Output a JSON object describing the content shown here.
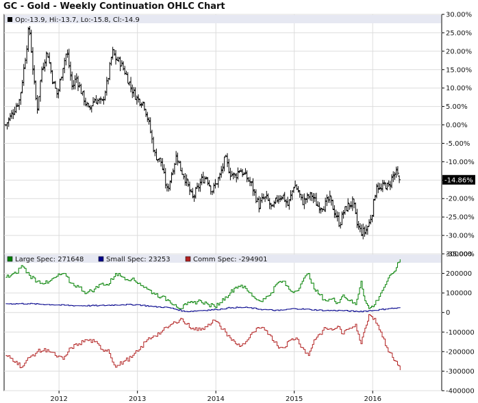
{
  "title": "GC - Gold - Weekly Continuation OHLC Chart",
  "colors": {
    "price": "#000000",
    "large_spec": "#008000",
    "small_spec": "#00008b",
    "comm_spec": "#b22222",
    "legend_band": "#e6e8f2",
    "grid": "#dcdcdc",
    "last_value_box": "#000000"
  },
  "price_legend": {
    "text": "Op:-13.9, Hi:-13.7, Lo:-15.8, Cl:-14.9"
  },
  "last_value_label": "-14.86%",
  "cot_legend": [
    {
      "text": "Large Spec: 271648",
      "color": "#008000"
    },
    {
      "text": "Small Spec: 23253",
      "color": "#00008b"
    },
    {
      "text": "Comm Spec: -294901",
      "color": "#b22222"
    }
  ],
  "chart_data": [
    {
      "type": "ohlc",
      "x_range": [
        2011.3,
        2016.88
      ],
      "ylim": [
        -35,
        30
      ],
      "y_ticks": [
        "30.00%",
        "25.00%",
        "20.00%",
        "15.00%",
        "10.00%",
        "5.00%",
        "0.00%",
        "-5.00%",
        "-10.00%",
        "-15.00%",
        "-20.00%",
        "-25.00%",
        "-30.00%",
        "-35.00%"
      ],
      "y_tick_values": [
        30,
        25,
        20,
        15,
        10,
        5,
        0,
        -5,
        -10,
        -15,
        -20,
        -25,
        -30,
        -35
      ],
      "grid": true,
      "close_path_x": [
        2011.32,
        2011.4,
        2011.5,
        2011.58,
        2011.62,
        2011.68,
        2011.72,
        2011.78,
        2011.85,
        2011.92,
        2011.98,
        2012.05,
        2012.1,
        2012.17,
        2012.22,
        2012.3,
        2012.38,
        2012.45,
        2012.55,
        2012.62,
        2012.68,
        2012.72,
        2012.78,
        2012.85,
        2012.92,
        2013.0,
        2013.08,
        2013.15,
        2013.22,
        2013.3,
        2013.38,
        2013.45,
        2013.5,
        2013.55,
        2013.6,
        2013.65,
        2013.7,
        2013.75,
        2013.82,
        2013.88,
        2013.95,
        2014.0,
        2014.05,
        2014.12,
        2014.18,
        2014.25,
        2014.3,
        2014.38,
        2014.45,
        2014.5,
        2014.55,
        2014.6,
        2014.65,
        2014.72,
        2014.78,
        2014.85,
        2014.92,
        2015.0,
        2015.05,
        2015.1,
        2015.15,
        2015.22,
        2015.3,
        2015.38,
        2015.45,
        2015.52,
        2015.58,
        2015.62,
        2015.68,
        2015.75,
        2015.8,
        2015.85,
        2015.9,
        2015.95,
        2016.0,
        2016.05,
        2016.1,
        2016.15,
        2016.2,
        2016.25,
        2016.3,
        2016.35
      ],
      "close_path_y": [
        0,
        3,
        7,
        20,
        27,
        12,
        4,
        15,
        20,
        12,
        8,
        16,
        20,
        10,
        13,
        8,
        4,
        7,
        6,
        12,
        20,
        18,
        17,
        14,
        10,
        7,
        6,
        0,
        -8,
        -10,
        -18,
        -12,
        -8,
        -12,
        -14,
        -17,
        -20,
        -18,
        -15,
        -14,
        -18,
        -16,
        -14,
        -9,
        -13,
        -14,
        -12,
        -14,
        -16,
        -19,
        -22,
        -20,
        -20,
        -23,
        -20,
        -19,
        -22,
        -16,
        -18,
        -21,
        -20,
        -19,
        -22,
        -22,
        -20,
        -24,
        -27,
        -24,
        -22,
        -21,
        -27,
        -29,
        -29,
        -27,
        -23,
        -16,
        -18,
        -16,
        -17,
        -14,
        -13,
        -14.9
      ],
      "last_bar": {
        "open": -13.9,
        "high": -13.7,
        "low": -15.8,
        "close": -14.9
      }
    },
    {
      "type": "line",
      "x_range": [
        2011.3,
        2016.88
      ],
      "ylim": [
        -400000,
        300000
      ],
      "y_ticks": [
        "300000",
        "200000",
        "100000",
        "0",
        "-100000",
        "-200000",
        "-300000",
        "-400000"
      ],
      "y_tick_values": [
        300000,
        200000,
        100000,
        0,
        -100000,
        -200000,
        -300000,
        -400000
      ],
      "x_ticks": [
        "2012",
        "2013",
        "2014",
        "2015",
        "2016"
      ],
      "x_tick_values": [
        2012,
        2013,
        2014,
        2015,
        2016
      ],
      "grid": true,
      "series": [
        {
          "name": "Large Spec",
          "color": "#008000",
          "x": [
            2011.32,
            2011.45,
            2011.52,
            2011.62,
            2011.72,
            2011.85,
            2011.95,
            2012.05,
            2012.15,
            2012.25,
            2012.35,
            2012.45,
            2012.55,
            2012.62,
            2012.72,
            2012.82,
            2012.92,
            2013.02,
            2013.12,
            2013.2,
            2013.3,
            2013.4,
            2013.48,
            2013.55,
            2013.62,
            2013.7,
            2013.8,
            2013.9,
            2013.98,
            2014.05,
            2014.12,
            2014.18,
            2014.25,
            2014.32,
            2014.4,
            2014.48,
            2014.55,
            2014.62,
            2014.7,
            2014.78,
            2014.85,
            2014.95,
            2015.02,
            2015.1,
            2015.18,
            2015.25,
            2015.32,
            2015.4,
            2015.48,
            2015.55,
            2015.62,
            2015.7,
            2015.78,
            2015.85,
            2015.9,
            2015.95,
            2016.02,
            2016.1,
            2016.18,
            2016.25,
            2016.3,
            2016.35
          ],
          "y": [
            180000,
            200000,
            240000,
            190000,
            160000,
            150000,
            180000,
            200000,
            150000,
            130000,
            100000,
            120000,
            150000,
            140000,
            200000,
            180000,
            170000,
            150000,
            120000,
            100000,
            80000,
            60000,
            40000,
            20000,
            40000,
            50000,
            60000,
            40000,
            30000,
            50000,
            80000,
            100000,
            130000,
            140000,
            110000,
            80000,
            60000,
            70000,
            100000,
            150000,
            160000,
            110000,
            110000,
            160000,
            200000,
            120000,
            90000,
            60000,
            70000,
            50000,
            90000,
            60000,
            40000,
            160000,
            60000,
            20000,
            40000,
            100000,
            160000,
            200000,
            230000,
            272000
          ]
        },
        {
          "name": "Small Spec",
          "color": "#00008b",
          "x": [
            2011.32,
            2011.6,
            2011.9,
            2012.2,
            2012.5,
            2012.8,
            2013.0,
            2013.2,
            2013.4,
            2013.6,
            2013.8,
            2014.0,
            2014.2,
            2014.4,
            2014.6,
            2014.8,
            2015.0,
            2015.2,
            2015.4,
            2015.6,
            2015.8,
            2016.0,
            2016.2,
            2016.35
          ],
          "y": [
            45000,
            45000,
            40000,
            35000,
            35000,
            40000,
            40000,
            30000,
            25000,
            5000,
            10000,
            15000,
            25000,
            25000,
            15000,
            10000,
            20000,
            15000,
            10000,
            10000,
            5000,
            10000,
            20000,
            23000
          ]
        },
        {
          "name": "Comm Spec",
          "color": "#b22222",
          "x": [
            2011.32,
            2011.45,
            2011.52,
            2011.62,
            2011.72,
            2011.85,
            2011.95,
            2012.05,
            2012.15,
            2012.25,
            2012.35,
            2012.45,
            2012.55,
            2012.62,
            2012.72,
            2012.82,
            2012.92,
            2013.02,
            2013.12,
            2013.2,
            2013.3,
            2013.4,
            2013.48,
            2013.55,
            2013.62,
            2013.7,
            2013.8,
            2013.9,
            2013.98,
            2014.05,
            2014.12,
            2014.18,
            2014.25,
            2014.32,
            2014.4,
            2014.48,
            2014.55,
            2014.62,
            2014.7,
            2014.78,
            2014.85,
            2014.95,
            2015.02,
            2015.1,
            2015.18,
            2015.25,
            2015.32,
            2015.4,
            2015.48,
            2015.55,
            2015.62,
            2015.7,
            2015.78,
            2015.85,
            2015.9,
            2015.95,
            2016.02,
            2016.1,
            2016.18,
            2016.25,
            2016.3,
            2016.35
          ],
          "y": [
            -220000,
            -250000,
            -280000,
            -230000,
            -200000,
            -190000,
            -220000,
            -240000,
            -180000,
            -160000,
            -140000,
            -150000,
            -190000,
            -190000,
            -280000,
            -250000,
            -230000,
            -190000,
            -140000,
            -120000,
            -100000,
            -70000,
            -50000,
            -30000,
            -60000,
            -80000,
            -90000,
            -60000,
            -40000,
            -70000,
            -100000,
            -130000,
            -160000,
            -170000,
            -140000,
            -100000,
            -80000,
            -90000,
            -120000,
            -170000,
            -180000,
            -140000,
            -130000,
            -180000,
            -220000,
            -140000,
            -110000,
            -80000,
            -90000,
            -70000,
            -110000,
            -80000,
            -60000,
            -160000,
            -80000,
            -10000,
            -30000,
            -100000,
            -180000,
            -230000,
            -250000,
            -295000
          ]
        }
      ]
    }
  ]
}
